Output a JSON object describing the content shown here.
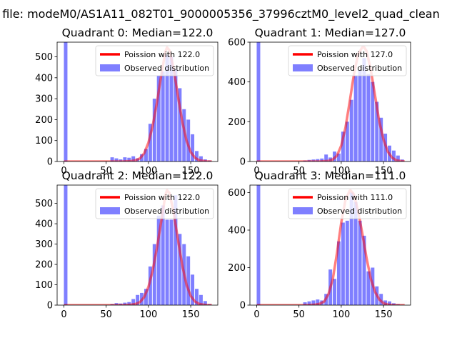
{
  "figure": {
    "suptitle": "n file: modeM0/AS1A11_082T01_9000005356_37996cztM0_level2_quad_clean"
  },
  "chart_data": [
    {
      "type": "bar",
      "title": "Quadrant 0: Median=122.0",
      "median": 122.0,
      "xlim": [
        -8,
        182
      ],
      "ylim": [
        0,
        570
      ],
      "xticks": [
        0,
        50,
        100,
        150
      ],
      "yticks": [
        0,
        100,
        200,
        300,
        400,
        500
      ],
      "legend": {
        "placement": "top-right",
        "entries": [
          "Poission with 122.0",
          "Observed distribution"
        ]
      },
      "series": [
        {
          "name": "Observed distribution",
          "kind": "histogram",
          "color": "#7f7fff",
          "bin_width": 4.2,
          "bins_x": [
            0,
            55,
            60,
            65,
            70,
            75,
            80,
            85,
            90,
            95,
            100,
            105,
            110,
            115,
            120,
            125,
            130,
            135,
            140,
            145,
            150,
            155,
            160,
            165,
            170
          ],
          "values": [
            570,
            20,
            15,
            10,
            20,
            18,
            25,
            15,
            35,
            60,
            180,
            300,
            410,
            430,
            510,
            500,
            440,
            350,
            250,
            200,
            130,
            50,
            25,
            10,
            5
          ]
        },
        {
          "name": "Poission with 122.0",
          "kind": "line",
          "color": "#ff0000",
          "x": [
            0,
            70,
            80,
            85,
            90,
            95,
            100,
            105,
            110,
            115,
            120,
            122,
            125,
            130,
            135,
            140,
            145,
            150,
            155,
            160,
            165,
            170,
            175
          ],
          "y": [
            0,
            0,
            2,
            6,
            15,
            40,
            90,
            170,
            280,
            410,
            525,
            545,
            530,
            440,
            310,
            190,
            100,
            45,
            18,
            6,
            2,
            0,
            0
          ]
        }
      ]
    },
    {
      "type": "bar",
      "title": "Quadrant 1: Median=127.0",
      "median": 127.0,
      "xlim": [
        -8,
        182
      ],
      "ylim": [
        0,
        600
      ],
      "xticks": [
        0,
        50,
        100,
        150
      ],
      "yticks": [
        0,
        200,
        400,
        600
      ],
      "legend": {
        "placement": "top-right",
        "entries": [
          "Poission with 127.0",
          "Observed distribution"
        ]
      },
      "series": [
        {
          "name": "Observed distribution",
          "kind": "histogram",
          "color": "#7f7fff",
          "bin_width": 4.2,
          "bins_x": [
            0,
            55,
            60,
            65,
            70,
            75,
            80,
            85,
            90,
            95,
            100,
            105,
            110,
            115,
            120,
            125,
            130,
            135,
            140,
            145,
            150,
            155,
            160,
            165,
            170
          ],
          "values": [
            600,
            5,
            8,
            10,
            12,
            15,
            35,
            20,
            50,
            40,
            150,
            200,
            310,
            430,
            460,
            520,
            440,
            400,
            300,
            220,
            140,
            80,
            55,
            30,
            10
          ]
        },
        {
          "name": "Poission with 127.0",
          "kind": "line",
          "color": "#ff0000",
          "x": [
            0,
            75,
            85,
            90,
            95,
            100,
            105,
            110,
            115,
            120,
            125,
            127,
            130,
            135,
            140,
            145,
            150,
            155,
            160,
            165,
            170,
            175
          ],
          "y": [
            0,
            0,
            3,
            10,
            30,
            80,
            170,
            300,
            440,
            540,
            575,
            575,
            555,
            460,
            330,
            200,
            110,
            50,
            20,
            6,
            2,
            0
          ]
        }
      ]
    },
    {
      "type": "bar",
      "title": "Quadrant 2: Median=122.0",
      "median": 122.0,
      "xlim": [
        -8,
        182
      ],
      "ylim": [
        0,
        590
      ],
      "xticks": [
        0,
        50,
        100,
        150
      ],
      "yticks": [
        0,
        100,
        200,
        300,
        400,
        500
      ],
      "legend": {
        "placement": "top-right",
        "entries": [
          "Poission with 122.0",
          "Observed distribution"
        ]
      },
      "series": [
        {
          "name": "Observed distribution",
          "kind": "histogram",
          "color": "#7f7fff",
          "bin_width": 4.2,
          "bins_x": [
            0,
            55,
            60,
            65,
            70,
            75,
            80,
            85,
            90,
            95,
            100,
            105,
            110,
            115,
            120,
            125,
            130,
            135,
            140,
            145,
            150,
            155,
            160,
            165,
            170
          ],
          "values": [
            590,
            5,
            10,
            8,
            12,
            15,
            30,
            50,
            60,
            80,
            190,
            300,
            440,
            490,
            420,
            420,
            540,
            350,
            300,
            240,
            150,
            80,
            50,
            20,
            5
          ]
        },
        {
          "name": "Poission with 122.0",
          "kind": "line",
          "color": "#ff0000",
          "x": [
            0,
            70,
            80,
            85,
            90,
            95,
            100,
            105,
            110,
            115,
            120,
            122,
            125,
            130,
            135,
            140,
            145,
            150,
            155,
            160,
            165,
            170,
            175
          ],
          "y": [
            0,
            0,
            2,
            6,
            15,
            40,
            90,
            170,
            280,
            410,
            540,
            565,
            550,
            450,
            320,
            195,
            100,
            45,
            18,
            6,
            2,
            0,
            0
          ]
        }
      ]
    },
    {
      "type": "bar",
      "title": "Quadrant 3: Median=111.0",
      "median": 111.0,
      "xlim": [
        -8,
        182
      ],
      "ylim": [
        0,
        640
      ],
      "xticks": [
        0,
        50,
        100,
        150
      ],
      "yticks": [
        0,
        200,
        400,
        600
      ],
      "legend": {
        "placement": "top-right",
        "entries": [
          "Poission with 111.0",
          "Observed distribution"
        ]
      },
      "series": [
        {
          "name": "Observed distribution",
          "kind": "histogram",
          "color": "#7f7fff",
          "bin_width": 4.2,
          "bins_x": [
            0,
            55,
            60,
            65,
            70,
            75,
            80,
            85,
            90,
            95,
            100,
            105,
            110,
            115,
            120,
            125,
            130,
            135,
            140,
            145,
            150,
            155,
            160,
            165,
            170
          ],
          "values": [
            640,
            15,
            20,
            25,
            30,
            25,
            60,
            190,
            140,
            340,
            440,
            450,
            600,
            550,
            450,
            370,
            180,
            200,
            100,
            60,
            25,
            20,
            10,
            5,
            2
          ]
        },
        {
          "name": "Poission with 111.0",
          "kind": "line",
          "color": "#ff0000",
          "x": [
            0,
            60,
            70,
            75,
            80,
            85,
            90,
            95,
            100,
            105,
            110,
            111,
            115,
            120,
            125,
            130,
            135,
            140,
            145,
            150,
            155,
            160,
            165,
            170,
            175
          ],
          "y": [
            0,
            0,
            3,
            8,
            20,
            60,
            140,
            280,
            440,
            560,
            610,
            612,
            590,
            500,
            380,
            250,
            140,
            70,
            30,
            10,
            3,
            1,
            0,
            0,
            0
          ]
        }
      ]
    }
  ]
}
